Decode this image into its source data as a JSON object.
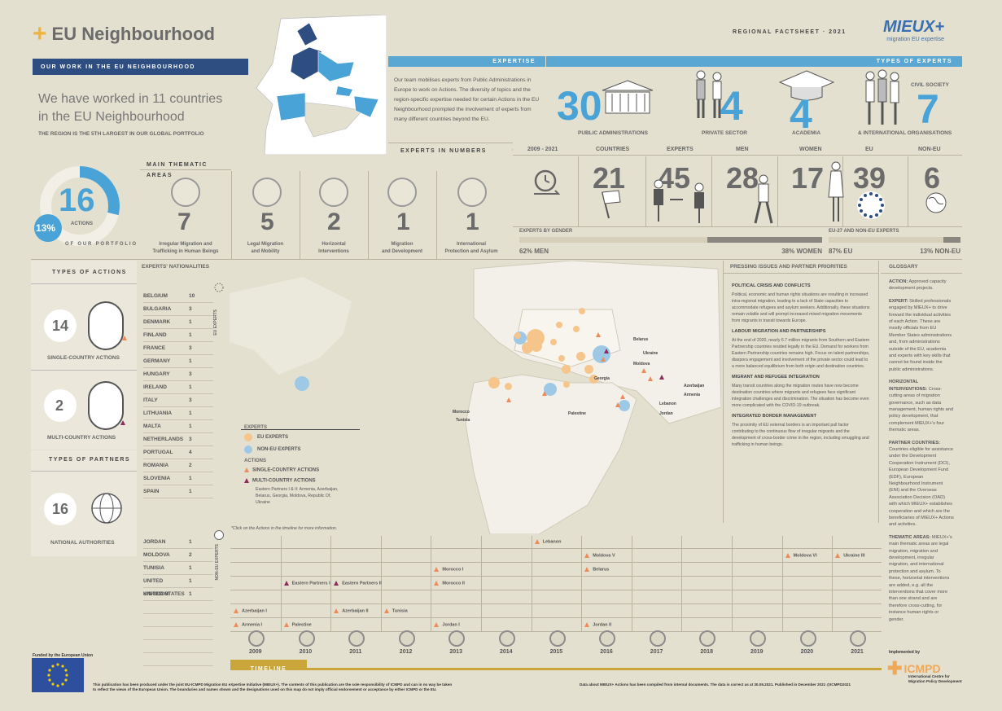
{
  "title": "EU Neighbourhood",
  "regional": "REGIONAL FACTSHEET · 2021",
  "logo": {
    "main": "MIEUX+",
    "sub": "migration EU expertise"
  },
  "work_bar": "OUR WORK IN THE EU NEIGHBOURHOOD",
  "intro": {
    "line1": "We have worked in 11 countries",
    "line2": "in the EU Neighbourhood",
    "sub_a": "THE REGION IS THE ",
    "sub_b": "5TH",
    "sub_c": " LARGEST IN OUR GLOBAL PORTFOLIO"
  },
  "expertise": {
    "header": "EXPERTISE",
    "text": "Our team mobilises experts from Public Administrations in Europe to work on Actions. The diversity of topics and the region-specific expertise needed for certain Actions in the EU Neighbourhood prompted the involvement of experts from many different countries beyond the EU."
  },
  "types_of_experts": {
    "header": "TYPES OF EXPERTS",
    "items": [
      {
        "n": "30",
        "l": "PUBLIC ADMINISTRATIONS"
      },
      {
        "n": "4",
        "l": "PRIVATE SECTOR"
      },
      {
        "n": "4",
        "l": "ACADEMIA"
      },
      {
        "n": "7",
        "l": "& INTERNATIONAL ORGANISATIONS",
        "top": "CIVIL SOCIETY"
      }
    ]
  },
  "numbers": {
    "header": "EXPERTS IN NUMBERS",
    "cols": [
      "2009 - 2021",
      "COUNTRIES",
      "EXPERTS",
      "MEN",
      "WOMEN",
      "EU",
      "NON-EU"
    ],
    "values": [
      "21",
      "45",
      "28",
      "17",
      "39",
      "6"
    ]
  },
  "gender": {
    "label": "EXPERTS BY GENDER",
    "men": "62% MEN",
    "women": "38% WOMEN",
    "men_share": 0.62
  },
  "eu_split": {
    "label": "EU-27 AND NON-EU EXPERTS",
    "eu": "87% EU",
    "noneu": "13% NON-EU",
    "eu_share": 0.87
  },
  "portfolio": {
    "num": "16",
    "actions": "ACTIONS",
    "pct": "13%",
    "curve": "OF OUR PORTFOLIO",
    "share": 0.13
  },
  "thematic": {
    "header": "MAIN THEMATIC AREAS",
    "items": [
      {
        "n": "7",
        "l1": "Irregular Migration and",
        "l2": "Trafficking in Human Beings"
      },
      {
        "n": "5",
        "l1": "Legal Migration",
        "l2": "and Mobility"
      },
      {
        "n": "2",
        "l1": "Horizontal",
        "l2": "Interventions"
      },
      {
        "n": "1",
        "l1": "Migration",
        "l2": "and Development"
      },
      {
        "n": "1",
        "l1": "International",
        "l2": "Protection and Asylum"
      }
    ]
  },
  "types_actions": {
    "header": "TYPES OF ACTIONS",
    "single_n": "14",
    "single": "SINGLE-COUNTRY ACTIONS",
    "multi_n": "2",
    "multi": "MULTI-COUNTRY ACTIONS"
  },
  "types_partners": {
    "header": "TYPES OF PARTNERS",
    "n": "16",
    "l": "NATIONAL AUTHORITIES"
  },
  "nationalities": {
    "header": "EXPERTS' NATIONALITIES",
    "eu_label": "EU EXPERTS",
    "noneu_label": "NON-EU EXPERTS",
    "eu": [
      [
        "BELGIUM",
        "10"
      ],
      [
        "BULGARIA",
        "3"
      ],
      [
        "DENMARK",
        "1"
      ],
      [
        "FINLAND",
        "1"
      ],
      [
        "FRANCE",
        "3"
      ],
      [
        "GERMANY",
        "1"
      ],
      [
        "HUNGARY",
        "3"
      ],
      [
        "IRELAND",
        "1"
      ],
      [
        "ITALY",
        "3"
      ],
      [
        "LITHUANIA",
        "1"
      ],
      [
        "MALTA",
        "1"
      ],
      [
        "NETHERLANDS",
        "3"
      ],
      [
        "PORTUGAL",
        "4"
      ],
      [
        "ROMANIA",
        "2"
      ],
      [
        "SLOVENIA",
        "1"
      ],
      [
        "SPAIN",
        "1"
      ]
    ],
    "noneu": [
      [
        "JORDAN",
        "1"
      ],
      [
        "MOLDOVA",
        "2"
      ],
      [
        "TUNISIA",
        "1"
      ],
      [
        "UNITED KINGDOM",
        "1"
      ],
      [
        "UNITED STATES",
        "1"
      ]
    ]
  },
  "legend": {
    "experts": "EXPERTS",
    "eu": "EU EXPERTS",
    "noneu": "NON-EU EXPERTS",
    "actions": "ACTIONS",
    "single": "SINGLE-COUNTRY ACTIONS",
    "multi": "MULTI-COUNTRY ACTIONS",
    "multi_note": "Eastern Partners I & II: Armenia, Azerbaijan, Belarus, Georgia, Moldova, Republic Of, Ukraine",
    "click": "*Click on the Actions in the timeline for more information."
  },
  "map_labels": [
    "Belarus",
    "Ukraine",
    "Moldova",
    "Georgia",
    "Azerbaijan",
    "Armenia",
    "Lebanon",
    "Jordan",
    "Palestine",
    "Morocco",
    "Tunisia"
  ],
  "pressing": {
    "header": "PRESSING ISSUES AND PARTNER PRIORITIES",
    "sections": [
      {
        "h": "POLITICAL CRISIS AND CONFLICTS",
        "p": "Political, economic and human rights situations are resulting in increased intra-regional migration, leading to a lack of State capacities to accommodate refugees and asylum seekers. Additionally, these situations remain volatile and will prompt increased mixed migration movements from migrants in transit towards Europe."
      },
      {
        "h": "LABOUR MIGRATION AND PARTNERSHIPS",
        "p": "At the end of 2020, nearly 6.7 million migrants from Southern and Eastern Partnership countries resided legally in the EU. Demand for workers from Eastern Partnership countries remains high. Focus on talent partnerships, diaspora engagement and involvement of the private sector could lead to a more balanced equilibrium from both origin and destination countries."
      },
      {
        "h": "MIGRANT AND REFUGEE INTEGRATION",
        "p": "Many transit countries along the migration routes have now become destination countries where migrants and refugees face significant integration challenges and discrimination. The situation has become even more complicated with the COVID-19 outbreak."
      },
      {
        "h": "INTEGRATED BORDER MANAGEMENT",
        "p": "The proximity of EU external borders is an important pull factor contributing to the continuous flow of irregular migrants and the development of cross-border crime in the region, including smuggling and trafficking in human beings."
      }
    ]
  },
  "glossary": {
    "header": "GLOSSARY",
    "items": [
      {
        "b": "ACTION:",
        "t": " Approved capacity development projects."
      },
      {
        "b": "EXPERT:",
        "t": " Skilled professionals engaged by MIEUX+ to drive forward the individual activities of each Action. These are mostly officials from EU Member States administrations and, from administrations outside of the EU, academia and experts with key skills that cannot be found inside the public administrations."
      },
      {
        "b": "HORIZONTAL INTERVENTIONS:",
        "t": " Cross-cutting areas of migration governance, such as data management, human rights and policy development, that complement MIEUX+'s four thematic areas."
      },
      {
        "b": "PARTNER COUNTRIES:",
        "t": " Countries eligible for assistance under the Development Cooperation Instrument (DCI), European Development Fund (EDF), European Neighbourhood Instrument (ENI) and the Overseas Association Decision (OAD) with which MIEUX+ establishes cooperation and which are the beneficiaries of MIEUX+ Actions and activities."
      },
      {
        "b": "THEMATIC AREAS:",
        "t": " MIEUX+'s main thematic areas are legal migration, migration and development, irregular migration, and international protection and asylum. To these, horizontal interventions are added, e.g. all the interventions that cover more than one strand and are therefore cross-cutting, for instance human rights or gender."
      }
    ]
  },
  "timeline": {
    "label": "TIMELINE",
    "years": [
      "2009",
      "2010",
      "2011",
      "2012",
      "2013",
      "2014",
      "2015",
      "2016",
      "2017",
      "2018",
      "2019",
      "2020",
      "2021"
    ],
    "actions": [
      {
        "t": "Lebanon",
        "col": 6,
        "row": 0,
        "k": "s"
      },
      {
        "t": "Moldova V",
        "col": 7,
        "row": 1,
        "k": "s"
      },
      {
        "t": "Moldova VI",
        "col": 11,
        "row": 1,
        "k": "s"
      },
      {
        "t": "Ukraine III",
        "col": 12,
        "row": 1,
        "k": "s"
      },
      {
        "t": "Belarus",
        "col": 7,
        "row": 2,
        "k": "s"
      },
      {
        "t": "Morocco I",
        "col": 4,
        "row": 2,
        "k": "s"
      },
      {
        "t": "Eastern Partners I",
        "col": 1,
        "row": 3,
        "k": "m"
      },
      {
        "t": "Eastern Partners II",
        "col": 2,
        "row": 3,
        "k": "m"
      },
      {
        "t": "Morocco II",
        "col": 4,
        "row": 3,
        "k": "s"
      },
      {
        "t": "Azerbaijan I",
        "col": 0,
        "row": 5,
        "k": "s"
      },
      {
        "t": "Azerbaijan II",
        "col": 2,
        "row": 5,
        "k": "s"
      },
      {
        "t": "Tunisia",
        "col": 3,
        "row": 5,
        "k": "s"
      },
      {
        "t": "Armenia I",
        "col": 0,
        "row": 6,
        "k": "s"
      },
      {
        "t": "Palestine",
        "col": 1,
        "row": 6,
        "k": "s"
      },
      {
        "t": "Jordan I",
        "col": 4,
        "row": 6,
        "k": "s"
      },
      {
        "t": "Jordan II",
        "col": 7,
        "row": 6,
        "k": "s"
      }
    ]
  },
  "footer": {
    "funded": "Funded by the European Union",
    "disclaimer1": "This publication has been produced under the joint EU-ICMPD Migration EU eXpertise Initiative (MIEUX+). The contents of this publication are the sole responsibility of ICMPD and can in no way be taken",
    "disclaimer2": "to reflect the views of the European Union. The boundaries and names shown and the designations used on this map do not imply official endorsement or acceptance by either ICMPD or the EU.",
    "data": "Data about MIEUX+ Actions has been compiled from internal documents. The data is correct as at 30.09.2021. Published in December 2021 @ICMPD2021",
    "impl": "Implemented by",
    "icmpd": "ICMPD",
    "icmpd_full1": "International Centre for",
    "icmpd_full2": "Migration Policy Development"
  },
  "colors": {
    "blue": "#4aa3d6",
    "navy": "#2e4e82",
    "orange": "#f0a757",
    "tri_single": "#ef8a5a",
    "tri_multi": "#8e2a5c",
    "beige": "#e4e0cf"
  }
}
